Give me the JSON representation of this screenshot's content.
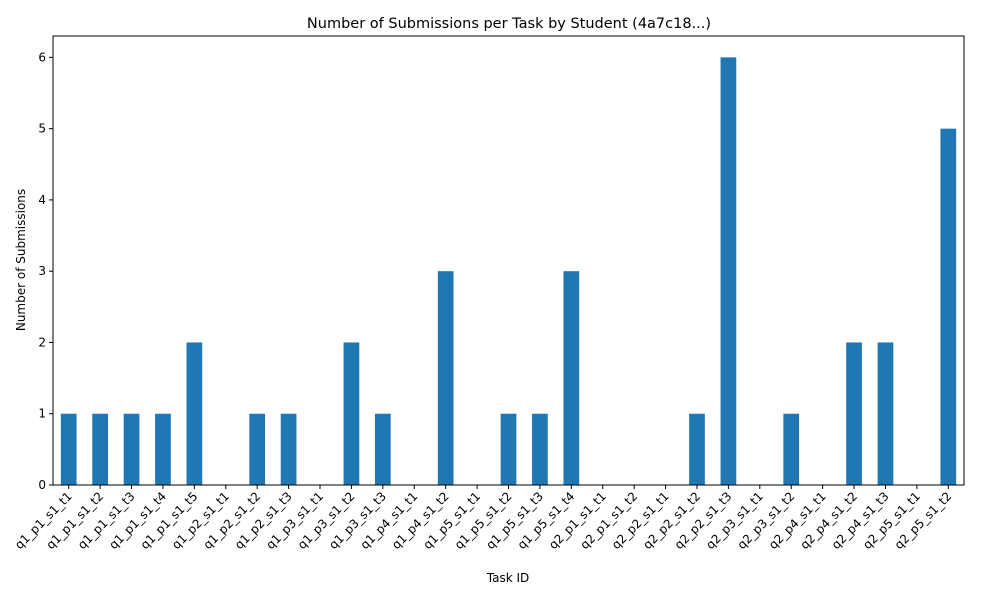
{
  "chart_data": {
    "type": "bar",
    "title": "Number of Submissions per Task by Student (4a7c18...)",
    "xlabel": "Task ID",
    "ylabel": "Number of Submissions",
    "ylim": [
      0,
      6.3
    ],
    "yticks": [
      0,
      1,
      2,
      3,
      4,
      5,
      6
    ],
    "grid": false,
    "bar_color": "#1f77b4",
    "categories": [
      "q1_p1_s1_t1",
      "q1_p1_s1_t2",
      "q1_p1_s1_t3",
      "q1_p1_s1_t4",
      "q1_p1_s1_t5",
      "q1_p2_s1_t1",
      "q1_p2_s1_t2",
      "q1_p2_s1_t3",
      "q1_p3_s1_t1",
      "q1_p3_s1_t2",
      "q1_p3_s1_t3",
      "q1_p4_s1_t1",
      "q1_p4_s1_t2",
      "q1_p5_s1_t1",
      "q1_p5_s1_t2",
      "q1_p5_s1_t3",
      "q1_p5_s1_t4",
      "q2_p1_s1_t1",
      "q2_p1_s1_t2",
      "q2_p2_s1_t1",
      "q2_p2_s1_t2",
      "q2_p2_s1_t3",
      "q2_p3_s1_t1",
      "q2_p3_s1_t2",
      "q2_p4_s1_t1",
      "q2_p4_s1_t2",
      "q2_p4_s1_t3",
      "q2_p5_s1_t1",
      "q2_p5_s1_t2"
    ],
    "values": [
      1,
      1,
      1,
      1,
      2,
      0,
      1,
      1,
      0,
      2,
      1,
      0,
      3,
      0,
      1,
      1,
      3,
      0,
      0,
      0,
      1,
      6,
      0,
      1,
      0,
      2,
      2,
      0,
      5
    ]
  }
}
